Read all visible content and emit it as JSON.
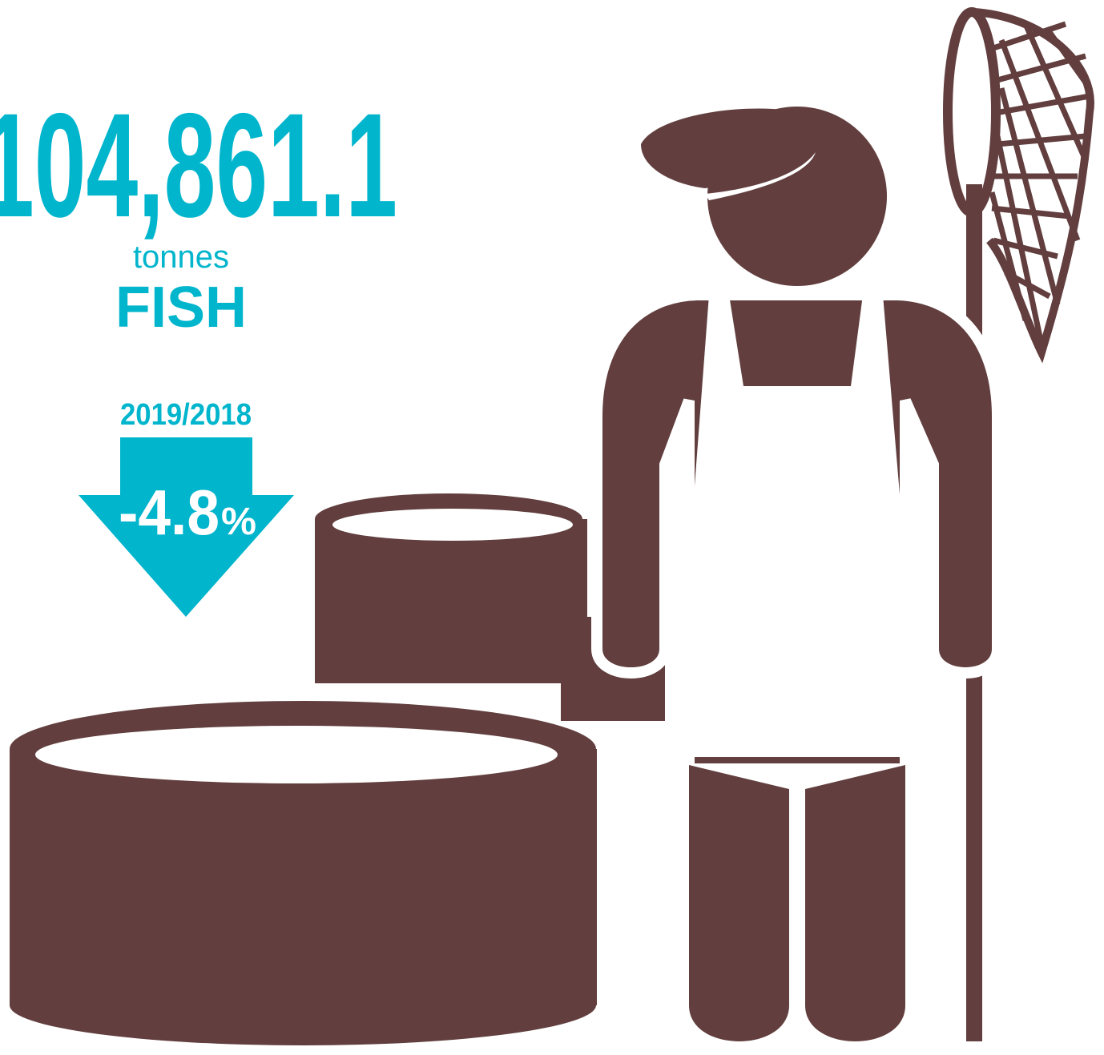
{
  "headline": {
    "value": "104,861.1",
    "unit": "tonnes",
    "label": "FISH"
  },
  "change": {
    "period": "2019/2018",
    "value": "-4.8",
    "unit": "%"
  }
}
